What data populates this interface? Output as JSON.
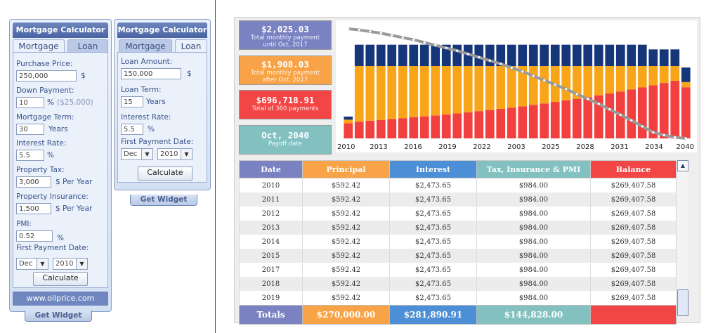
{
  "widget1": {
    "title": "Mortgage Calculator",
    "tabs": [
      "Mortgage",
      "Loan"
    ],
    "purchase_price_label": "Purchase Price:",
    "purchase_price": "250,000",
    "dollar": "$",
    "down_payment_label": "Down Payment:",
    "down_payment": "10",
    "percent": "%",
    "down_payment_amount": "($25,000)",
    "term_label": "Mortgage Term:",
    "term": "30",
    "years": "Years",
    "rate_label": "Interest Rate:",
    "rate": "5.5",
    "tax_label": "Property Tax:",
    "tax": "3,000",
    "per_year": "$ Per Year",
    "insurance_label": "Property Insurance:",
    "insurance": "1,500",
    "pmi_label": "PMI:",
    "pmi": "0.52",
    "first_payment_label": "First Payment Date:",
    "month": "Dec",
    "year": "2010",
    "calculate": "Calculate",
    "footer": "www.oilprice.com",
    "get_widget": "Get Widget"
  },
  "widget2": {
    "title": "Mortgage Calculator",
    "tabs": [
      "Mortgage",
      "Loan"
    ],
    "loan_amount_label": "Loan Amount:",
    "loan_amount": "150,000",
    "dollar": "$",
    "term_label": "Loan Term:",
    "term": "15",
    "years": "Years",
    "rate_label": "Interest Rate:",
    "rate": "5.5",
    "percent": "%",
    "first_payment_label": "First Payment Date:",
    "month": "Dec",
    "year": "2010",
    "calculate": "Calculate",
    "get_widget": "Get Widget"
  },
  "summary": [
    {
      "value": "$2,025.03",
      "line1": "Total monthly payment",
      "line2": "until Oct, 2017",
      "bg": "#7a82c2",
      "fg": "#ffffff"
    },
    {
      "value": "$1,908.03",
      "line1": "Total monthly payment",
      "line2": "after Oct, 2017",
      "bg": "#f8a347",
      "fg": "#ffffff"
    },
    {
      "value": "$696,718.91",
      "line1": "Total of 360 payments",
      "line2": "",
      "bg": "#f24545",
      "fg": "#ffffff"
    },
    {
      "value": "Oct, 2040",
      "line1": "Payoff date",
      "line2": "",
      "bg": "#83c1c1",
      "fg": "#ffffff"
    }
  ],
  "chart_data": {
    "type": "bar",
    "stacked": true,
    "x_tick_labels": [
      "2010",
      "2013",
      "2016",
      "2019",
      "2022",
      "2003",
      "2025",
      "2028",
      "2031",
      "2034",
      "2040"
    ],
    "colors": {
      "principal": "#f23f3f",
      "interest": "#f8a51a",
      "tax_insurance_pmi": "#16367a",
      "balance_line": "#9a9a9a"
    },
    "series": [
      {
        "name": "Principal",
        "values": [
          0.145,
          0.161,
          0.17,
          0.178,
          0.186,
          0.195,
          0.203,
          0.212,
          0.221,
          0.231,
          0.24,
          0.251,
          0.262,
          0.273,
          0.284,
          0.296,
          0.309,
          0.323,
          0.336,
          0.351,
          0.366,
          0.381,
          0.397,
          0.414,
          0.432,
          0.451,
          0.47,
          0.49,
          0.511,
          0.533,
          0.555,
          0.492
        ]
      },
      {
        "name": "Interest",
        "values": [
          0.035,
          0.535,
          0.526,
          0.518,
          0.51,
          0.501,
          0.493,
          0.484,
          0.475,
          0.465,
          0.456,
          0.445,
          0.434,
          0.423,
          0.412,
          0.4,
          0.387,
          0.373,
          0.36,
          0.345,
          0.33,
          0.315,
          0.299,
          0.282,
          0.264,
          0.245,
          0.226,
          0.206,
          0.185,
          0.163,
          0.141,
          0.05
        ]
      },
      {
        "name": "Tax, Insurance & PMI",
        "values": [
          0.03,
          0.205,
          0.205,
          0.205,
          0.205,
          0.205,
          0.205,
          0.205,
          0.205,
          0.205,
          0.205,
          0.205,
          0.205,
          0.205,
          0.205,
          0.205,
          0.205,
          0.205,
          0.205,
          0.205,
          0.205,
          0.205,
          0.205,
          0.205,
          0.205,
          0.205,
          0.205,
          0.205,
          0.16,
          0.16,
          0.16,
          0.14
        ]
      },
      {
        "name": "Balance",
        "values": [
          1.0,
          0.99,
          0.975,
          0.96,
          0.94,
          0.92,
          0.9,
          0.875,
          0.85,
          0.825,
          0.8,
          0.77,
          0.74,
          0.71,
          0.68,
          0.645,
          0.61,
          0.57,
          0.53,
          0.49,
          0.45,
          0.405,
          0.36,
          0.315,
          0.265,
          0.215,
          0.165,
          0.11,
          0.055,
          0.03,
          0.01,
          0.0
        ]
      }
    ]
  },
  "table": {
    "columns": [
      {
        "label": "Date",
        "bg": "#7a82c2",
        "fg": "#ffffff"
      },
      {
        "label": "Principal",
        "bg": "#f8a347",
        "fg": "#ffffff"
      },
      {
        "label": "Interest",
        "bg": "#4d8fd6",
        "fg": "#ffffff"
      },
      {
        "label": "Tax, Insurance & PMI",
        "bg": "#83c1c1",
        "fg": "#ffffff"
      },
      {
        "label": "Balance",
        "bg": "#f24545",
        "fg": "#ffffff"
      }
    ],
    "rows": [
      [
        "2010",
        "$592.42",
        "$2,473.65",
        "$984.00",
        "$269,407.58"
      ],
      [
        "2011",
        "$592.42",
        "$2,473.65",
        "$984.00",
        "$269,407.58"
      ],
      [
        "2012",
        "$592.42",
        "$2,473.65",
        "$984.00",
        "$269,407.58"
      ],
      [
        "2013",
        "$592.42",
        "$2,473.65",
        "$984.00",
        "$269,407.58"
      ],
      [
        "2014",
        "$592.42",
        "$2,473.65",
        "$984.00",
        "$269,407.58"
      ],
      [
        "2015",
        "$592.42",
        "$2,473.65",
        "$984.00",
        "$269,407.58"
      ],
      [
        "2017",
        "$592.42",
        "$2,473.65",
        "$984.00",
        "$269,407.58"
      ],
      [
        "2018",
        "$592.42",
        "$2,473.65",
        "$984.00",
        "$269,407.58"
      ],
      [
        "2019",
        "$592.42",
        "$2,473.65",
        "$984.00",
        "$269,407.58"
      ]
    ],
    "totals": [
      "Totals",
      "$270,000.00",
      "$281,890.91",
      "$144,828.00",
      ""
    ]
  }
}
